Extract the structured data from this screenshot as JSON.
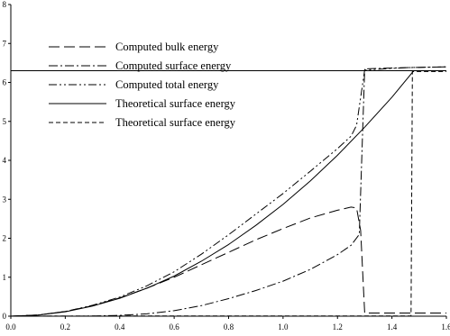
{
  "chart_data": {
    "type": "line",
    "title": "",
    "xlabel": "",
    "ylabel": "",
    "xlim": [
      0.0,
      1.6
    ],
    "ylim": [
      0,
      8
    ],
    "x_ticks": [
      "0.0",
      "0.2",
      "0.4",
      "0.6",
      "0.8",
      "1.0",
      "1.2",
      "1.4",
      "1.6"
    ],
    "y_ticks": [
      "0",
      "1",
      "2",
      "3",
      "4",
      "5",
      "6",
      "7",
      "8"
    ],
    "grid": false,
    "legend_position": "top-left",
    "horizontal_line_y": 6.3,
    "series": [
      {
        "name": "Computed bulk energy",
        "dash": "long-dash",
        "points": [
          [
            0,
            0
          ],
          [
            0.1,
            0.03
          ],
          [
            0.2,
            0.12
          ],
          [
            0.3,
            0.27
          ],
          [
            0.4,
            0.47
          ],
          [
            0.5,
            0.72
          ],
          [
            0.6,
            1.0
          ],
          [
            0.7,
            1.32
          ],
          [
            0.8,
            1.64
          ],
          [
            0.9,
            1.96
          ],
          [
            1.0,
            2.25
          ],
          [
            1.1,
            2.52
          ],
          [
            1.2,
            2.72
          ],
          [
            1.25,
            2.8
          ],
          [
            1.27,
            2.78
          ],
          [
            1.285,
            2.2
          ],
          [
            1.3,
            0.08
          ],
          [
            1.6,
            0.08
          ]
        ]
      },
      {
        "name": "Computed surface energy",
        "dash": "dash-dot",
        "points": [
          [
            0,
            0
          ],
          [
            0.3,
            0.005
          ],
          [
            0.4,
            0.02
          ],
          [
            0.5,
            0.06
          ],
          [
            0.6,
            0.14
          ],
          [
            0.7,
            0.27
          ],
          [
            0.8,
            0.45
          ],
          [
            0.9,
            0.66
          ],
          [
            1.0,
            0.9
          ],
          [
            1.1,
            1.2
          ],
          [
            1.2,
            1.58
          ],
          [
            1.25,
            1.82
          ],
          [
            1.28,
            2.1
          ],
          [
            1.3,
            6.35
          ],
          [
            1.45,
            6.38
          ],
          [
            1.6,
            6.4
          ]
        ]
      },
      {
        "name": "Computed total energy",
        "dash": "dash-dot-dot",
        "points": [
          [
            0,
            0
          ],
          [
            0.1,
            0.03
          ],
          [
            0.2,
            0.12
          ],
          [
            0.3,
            0.28
          ],
          [
            0.4,
            0.49
          ],
          [
            0.5,
            0.78
          ],
          [
            0.6,
            1.14
          ],
          [
            0.7,
            1.59
          ],
          [
            0.8,
            2.09
          ],
          [
            0.9,
            2.62
          ],
          [
            1.0,
            3.15
          ],
          [
            1.1,
            3.72
          ],
          [
            1.2,
            4.3
          ],
          [
            1.25,
            4.62
          ],
          [
            1.27,
            4.9
          ],
          [
            1.3,
            6.32
          ],
          [
            1.45,
            6.38
          ],
          [
            1.6,
            6.4
          ]
        ]
      },
      {
        "name": "Theoretical surface energy",
        "dash": "solid",
        "points": [
          [
            0,
            0
          ],
          [
            0.1,
            0.028
          ],
          [
            0.2,
            0.114
          ],
          [
            0.3,
            0.26
          ],
          [
            0.4,
            0.46
          ],
          [
            0.5,
            0.72
          ],
          [
            0.6,
            1.03
          ],
          [
            0.7,
            1.41
          ],
          [
            0.8,
            1.84
          ],
          [
            0.9,
            2.33
          ],
          [
            1.0,
            2.87
          ],
          [
            1.1,
            3.47
          ],
          [
            1.2,
            4.13
          ],
          [
            1.3,
            4.85
          ],
          [
            1.4,
            5.62
          ],
          [
            1.48,
            6.3
          ],
          [
            1.6,
            6.3
          ]
        ]
      },
      {
        "name": "Theoretical surface energy",
        "dash": "short-dash",
        "points": [
          [
            0,
            0
          ],
          [
            0.4,
            0.005
          ],
          [
            1.0,
            0.005
          ],
          [
            1.47,
            0.005
          ],
          [
            1.475,
            6.28
          ],
          [
            1.6,
            6.28
          ]
        ]
      }
    ]
  }
}
